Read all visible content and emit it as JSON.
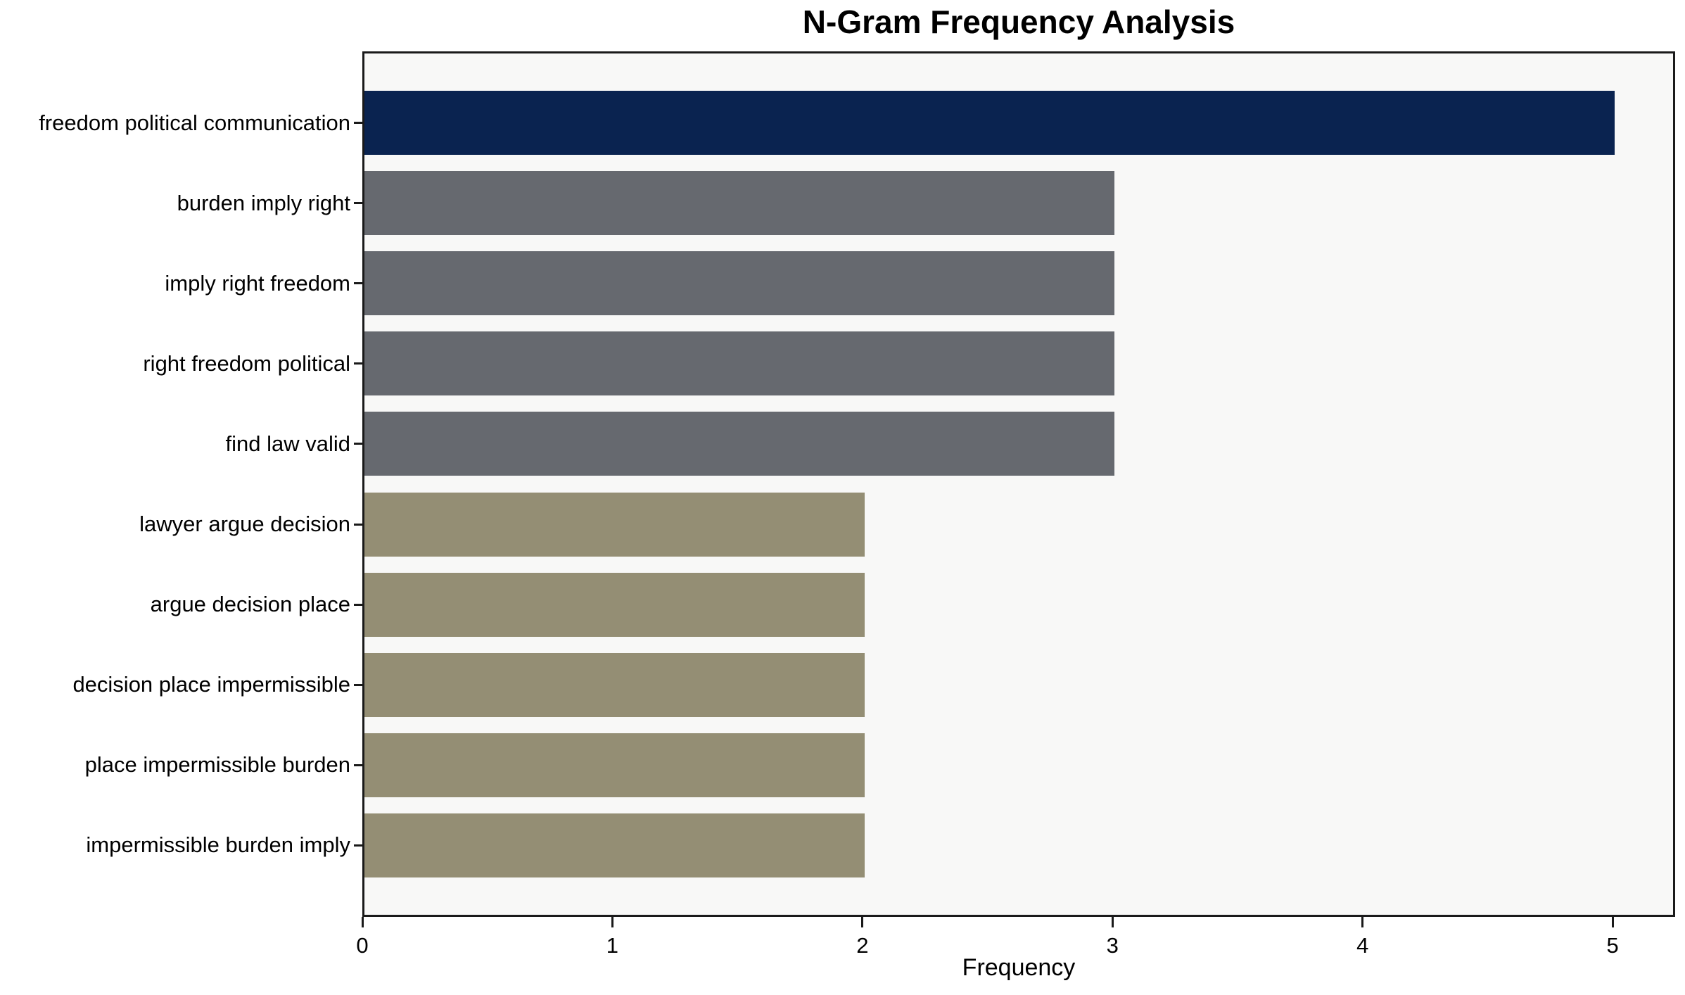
{
  "chart_data": {
    "type": "bar",
    "orientation": "horizontal",
    "title": "N-Gram Frequency Analysis",
    "xlabel": "Frequency",
    "ylabel": "",
    "categories": [
      "freedom political communication",
      "burden imply right",
      "imply right freedom",
      "right freedom political",
      "find law valid",
      "lawyer argue decision",
      "argue decision place",
      "decision place impermissible",
      "place impermissible burden",
      "impermissible burden imply"
    ],
    "values": [
      5,
      3,
      3,
      3,
      3,
      2,
      2,
      2,
      2,
      2
    ],
    "bar_colors": [
      "#0a2350",
      "#66696f",
      "#66696f",
      "#66696f",
      "#66696f",
      "#948e74",
      "#948e74",
      "#948e74",
      "#948e74",
      "#948e74"
    ],
    "xticks": [
      "0",
      "1",
      "2",
      "3",
      "4",
      "5"
    ],
    "xtick_values": [
      0,
      1,
      2,
      3,
      4,
      5
    ],
    "xlim": [
      0,
      5.25
    ],
    "grid": false,
    "legend": null,
    "plot_background": "#f8f8f7",
    "figure_background": "#ffffff",
    "axis_color": "#1a1a1a",
    "title_color": "#000000"
  }
}
